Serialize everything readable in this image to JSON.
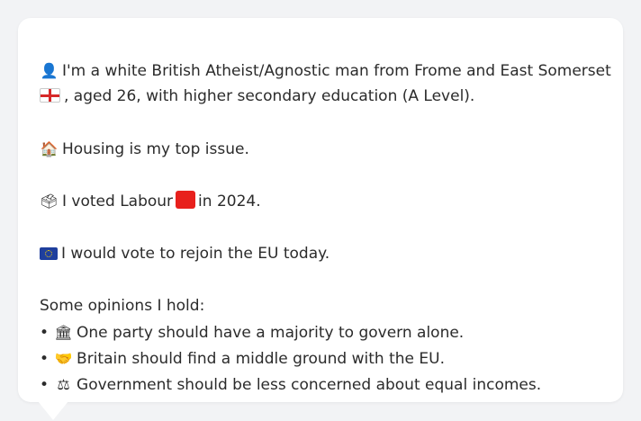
{
  "profile": {
    "line1_part1": "I'm a white British Atheist/Agnostic man from Frome and East Somerset",
    "line1_part2": ", aged 26, with higher secondary education (A Level).",
    "housing": "Housing is my top issue.",
    "vote_prefix": "I voted Labour",
    "vote_suffix": "in 2024.",
    "eu": "I would vote to rejoin the EU today.",
    "opinions_heading": "Some opinions I hold:",
    "opinions": [
      "One party should have a majority to govern alone.",
      "Britain should find a middle ground with the EU.",
      "Government should be less concerned about equal incomes."
    ]
  },
  "icons": {
    "person": "bust-in-silhouette-icon",
    "england_flag": "england-flag-icon",
    "house": "house-icon",
    "ballot": "ballot-box-icon",
    "labour_color": "#e8201c",
    "eu_flag": "eu-flag-icon",
    "bullet": "•",
    "opinion_icons": [
      "classical-building-icon",
      "handshake-icon",
      "scales-icon"
    ]
  }
}
